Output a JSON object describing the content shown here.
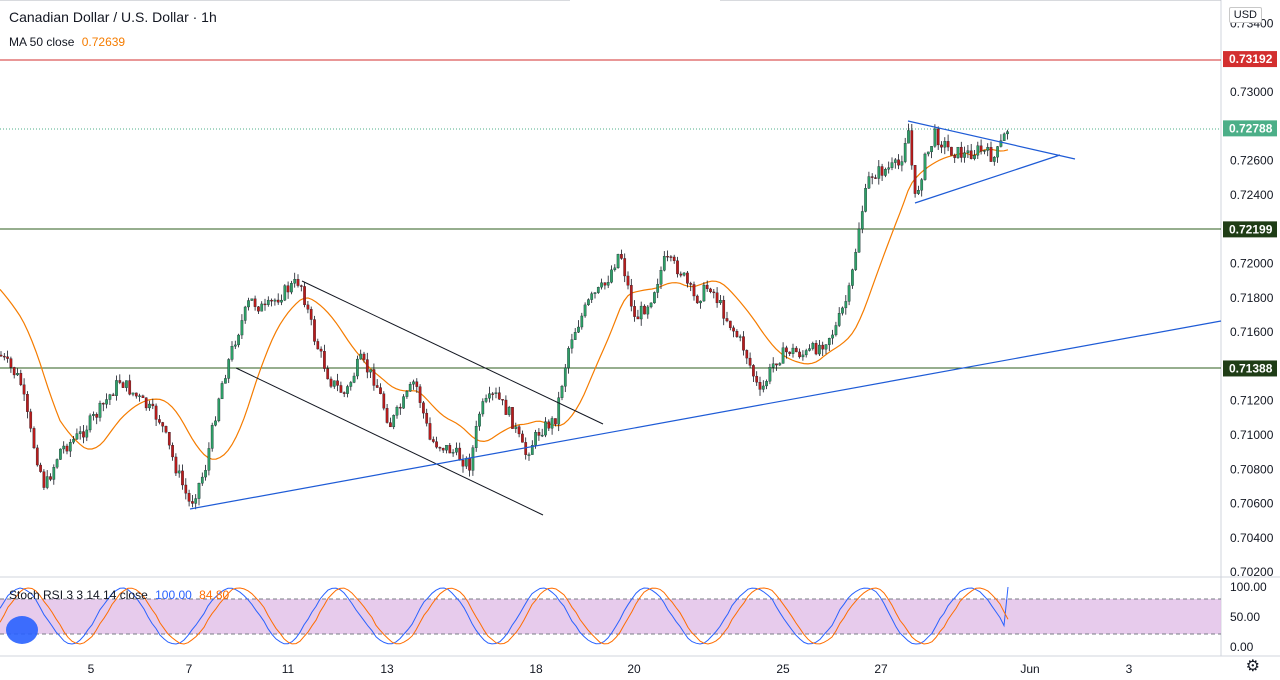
{
  "header": {
    "title": "Canadian Dollar / U.S. Dollar · 1h",
    "ma_label": "MA 50 close",
    "ma_value": "0.72639",
    "currency": "USD"
  },
  "indicator": {
    "label": "Stoch RSI 3 3 14 14 close",
    "k_value": "100.00",
    "d_value": "84.80",
    "levels": [
      "100.00",
      "50.00",
      "0.00"
    ]
  },
  "colors": {
    "up": "#26a69a",
    "down": "#ef5350",
    "ma": "#f57c00",
    "trendline": "#1e5bd6",
    "resistance": "#d32f2f",
    "support": "#2e5e1e",
    "current": "#4caf88",
    "stoch_k": "#2962ff",
    "stoch_d": "#ff6d00",
    "stoch_band": "#e1bee7"
  },
  "chart_data": {
    "type": "candlestick",
    "symbol": "Canadian Dollar / U.S. Dollar",
    "interval": "1h",
    "price_ticks": [
      "0.73400",
      "0.73000",
      "0.72600",
      "0.72400",
      "0.72000",
      "0.71800",
      "0.71600",
      "0.71200",
      "0.71000",
      "0.70800",
      "0.70600",
      "0.70400",
      "0.70200"
    ],
    "x_ticks": [
      "5",
      "7",
      "11",
      "13",
      "18",
      "20",
      "25",
      "27",
      "Jun",
      "3"
    ],
    "price_tags": [
      {
        "label": "0.73192",
        "kind": "resistance"
      },
      {
        "label": "0.72788",
        "kind": "current"
      },
      {
        "label": "0.72199",
        "kind": "support"
      },
      {
        "label": "0.71388",
        "kind": "support"
      }
    ],
    "ylim": [
      0.702,
      0.735
    ],
    "series": [
      {
        "name": "MA 50 close",
        "last": 0.72639
      }
    ]
  }
}
